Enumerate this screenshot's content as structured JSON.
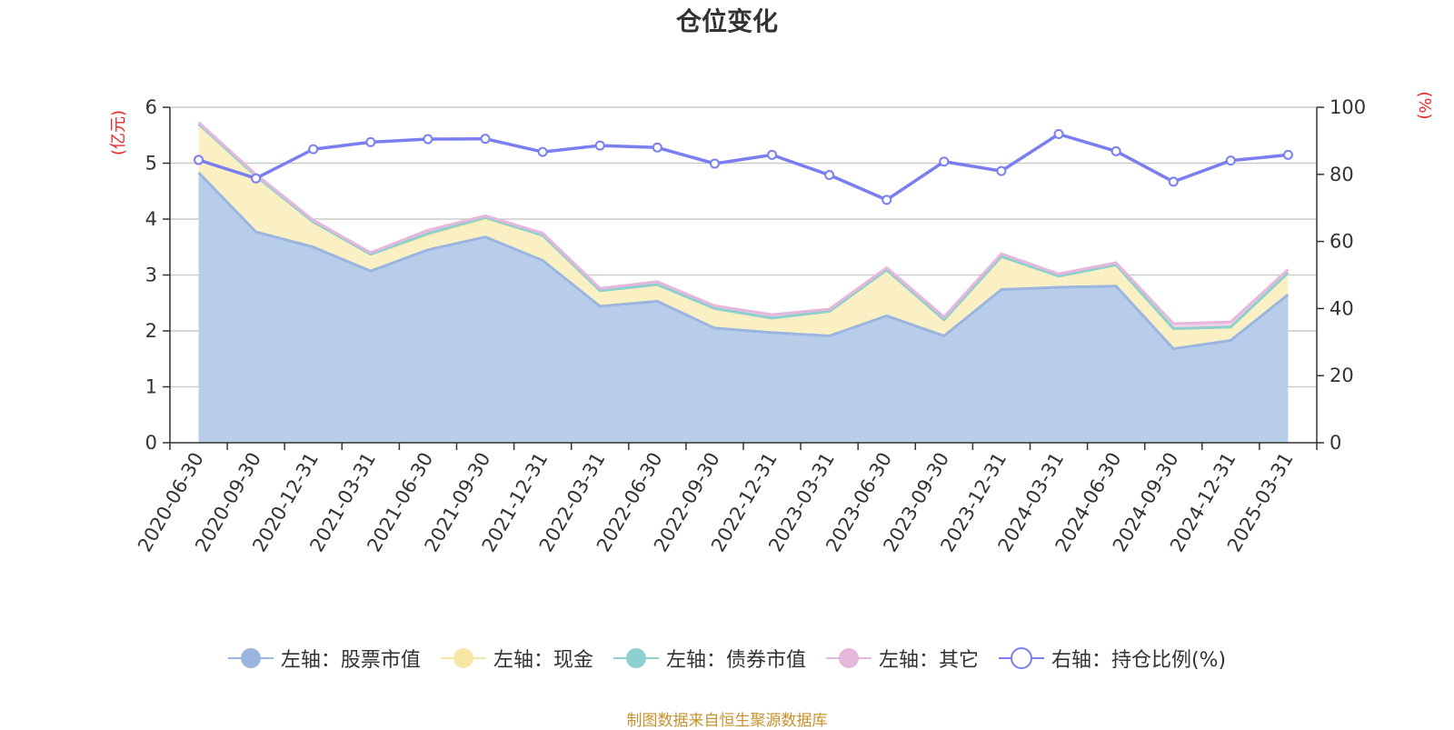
{
  "chart_data": {
    "type": "area",
    "title": "仓位变化",
    "y_left_label": "(亿元)",
    "y_right_label": "(%)",
    "y_left_lim": [
      0,
      6
    ],
    "y_left_ticks": [
      0,
      1,
      2,
      3,
      4,
      5,
      6
    ],
    "y_right_lim": [
      0,
      100
    ],
    "y_right_ticks": [
      0,
      20,
      40,
      60,
      80,
      100
    ],
    "grid": true,
    "legend_position": "bottom",
    "x": [
      "2020-06-30",
      "2020-09-30",
      "2020-12-31",
      "2021-03-31",
      "2021-06-30",
      "2021-09-30",
      "2021-12-31",
      "2022-03-31",
      "2022-06-30",
      "2022-09-30",
      "2022-12-31",
      "2023-03-31",
      "2023-06-30",
      "2023-09-30",
      "2023-12-31",
      "2024-03-31",
      "2024-06-30",
      "2024-09-30",
      "2024-12-31",
      "2025-03-31"
    ],
    "series": [
      {
        "name": "左轴：股票市值",
        "axis": "left",
        "stack": true,
        "color": "#9ab6e0",
        "fill": "#b8cdea",
        "values": [
          4.83,
          3.77,
          3.5,
          3.07,
          3.45,
          3.68,
          3.26,
          2.44,
          2.53,
          2.05,
          1.97,
          1.91,
          2.27,
          1.91,
          2.74,
          2.78,
          2.8,
          1.68,
          1.83,
          2.65
        ]
      },
      {
        "name": "左轴：现金",
        "axis": "left",
        "stack": true,
        "color": "#f6e7a5",
        "fill": "#faf0c4",
        "values": [
          0.87,
          1.0,
          0.45,
          0.3,
          0.27,
          0.33,
          0.45,
          0.28,
          0.3,
          0.35,
          0.26,
          0.44,
          0.82,
          0.29,
          0.59,
          0.2,
          0.38,
          0.36,
          0.24,
          0.39
        ]
      },
      {
        "name": "左轴：债券市值",
        "axis": "left",
        "stack": true,
        "color": "#8ecfcf",
        "fill": "#b6e3e3",
        "values": [
          0,
          0,
          0,
          0,
          0.02,
          0.02,
          0,
          0,
          0,
          0,
          0,
          0,
          0,
          0,
          0,
          0,
          0,
          0,
          0,
          0
        ]
      },
      {
        "name": "左轴：其它",
        "axis": "left",
        "stack": true,
        "color": "#e6b7dc",
        "fill": "#f0d2ea",
        "values": [
          0.03,
          0.03,
          0.03,
          0.03,
          0.06,
          0.03,
          0.04,
          0.04,
          0.05,
          0.05,
          0.06,
          0.04,
          0.04,
          0.05,
          0.05,
          0.04,
          0.04,
          0.09,
          0.09,
          0.06
        ]
      },
      {
        "name": "右轴：持仓比例(%)",
        "axis": "right",
        "type": "line",
        "color": "#7b7ef0",
        "values": [
          84.3,
          78.8,
          87.5,
          89.6,
          90.5,
          90.6,
          86.7,
          88.6,
          88.0,
          83.2,
          85.8,
          79.8,
          72.4,
          83.8,
          81.0,
          92.0,
          86.9,
          77.8,
          84.1,
          85.8
        ]
      }
    ]
  },
  "legend": [
    {
      "label": "左轴：股票市值",
      "icon": "filled-circle",
      "color": "#9ab6e0"
    },
    {
      "label": "左轴：现金",
      "icon": "filled-circle",
      "color": "#f6e7a5"
    },
    {
      "label": "左轴：债券市值",
      "icon": "filled-circle",
      "color": "#8ecfcf"
    },
    {
      "label": "左轴：其它",
      "icon": "filled-circle",
      "color": "#e6b7dc"
    },
    {
      "label": "右轴：持仓比例(%)",
      "icon": "hollow-circle",
      "color": "#7b7ef0"
    }
  ],
  "source": "制图数据来自恒生聚源数据库"
}
